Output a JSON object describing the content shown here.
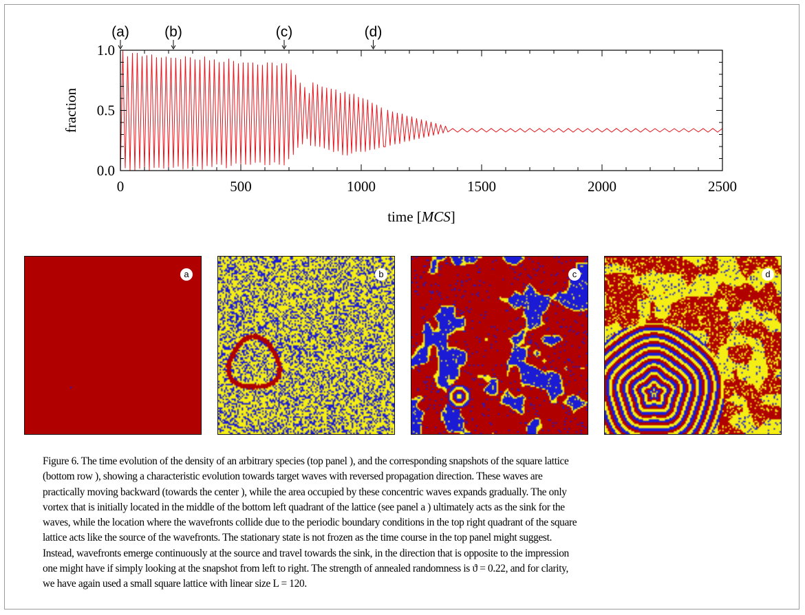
{
  "figure": {
    "chart_data": {
      "type": "line",
      "xlabel_text": "time [",
      "xlabel_italic": "MCS",
      "xlabel_close": "]",
      "ylabel": "fraction",
      "xlim": [
        0,
        2500
      ],
      "ylim": [
        0.0,
        1.0
      ],
      "x_ticks": [
        0,
        500,
        1000,
        1500,
        2000,
        2500
      ],
      "x_tick_labels": [
        "0",
        "500",
        "1000",
        "1500",
        "2000",
        "2500"
      ],
      "y_ticks": [
        0.0,
        0.5,
        1.0
      ],
      "y_tick_labels": [
        "0.0",
        "0.5",
        "1.0"
      ],
      "series": [
        {
          "color": "#e8141b",
          "segments": [
            {
              "x_start": 0,
              "x_end": 680,
              "period": 20,
              "min_start": 0.0,
              "max_start": 0.97,
              "min_end": 0.06,
              "max_end": 0.88
            },
            {
              "x_start": 680,
              "x_end": 790,
              "period": 19,
              "min_start": 0.06,
              "max_start": 0.88,
              "min_end": 0.3,
              "max_end": 0.6
            },
            {
              "x_start": 790,
              "x_end": 960,
              "period": 19,
              "min_start": 0.22,
              "max_start": 0.72,
              "min_end": 0.12,
              "max_end": 0.62
            },
            {
              "x_start": 960,
              "x_end": 1100,
              "period": 19,
              "min_start": 0.14,
              "max_start": 0.64,
              "min_end": 0.2,
              "max_end": 0.5
            },
            {
              "x_start": 1100,
              "x_end": 1360,
              "period": 20,
              "min_start": 0.2,
              "max_start": 0.5,
              "min_end": 0.32,
              "max_end": 0.36
            },
            {
              "x_start": 1360,
              "x_end": 2500,
              "period": 40,
              "min_start": 0.32,
              "max_start": 0.35,
              "min_end": 0.32,
              "max_end": 0.35
            }
          ],
          "approx_steady_value": 0.34
        }
      ],
      "markers": [
        {
          "label": "(a)",
          "x": 0
        },
        {
          "label": "(b)",
          "x": 220
        },
        {
          "label": "(c)",
          "x": 680
        },
        {
          "label": "(d)",
          "x": 1050
        }
      ]
    },
    "snapshots": [
      {
        "tag": "a",
        "pattern": "uniform-red"
      },
      {
        "tag": "b",
        "pattern": "yellow-blue-noise-red-ring"
      },
      {
        "tag": "c",
        "pattern": "red-domains-blue-fronts-small-target"
      },
      {
        "tag": "d",
        "pattern": "concentric-target-waves"
      }
    ],
    "colors": {
      "red": "#b00000",
      "blue": "#1b1bd6",
      "yellow": "#f4ee14",
      "line": "#e8141b"
    },
    "caption": "Figure 6. The time evolution of the density of an arbitrary species (top panel ), and the corresponding snapshots of the square lattice\n(bottom row ), showing a characteristic evolution towards target waves with reversed propagation direction. These waves are\npractically moving backward (towards the center ), while the area occupied by these concentric waves expands gradually. The only\nvortex that is initially located in the middle of the bottom left quadrant of the lattice (see panel a ) ultimately acts as the sink for the\nwaves, while the location where the wavefronts collide due to the periodic boundary conditions in the top right quadrant of the square\nlattice acts like the source of the wavefronts. The stationary state is not frozen as the time course in the top panel might suggest.\nInstead, wavefronts emerge continuously at the source and travel towards the sink, in the direction that is opposite to the impression\none might have if simply looking at the snapshot from left to right. The strength of annealed randomness is ϑ = 0.22, and for clarity,\nwe have again used a small square lattice with linear size L = 120."
  }
}
